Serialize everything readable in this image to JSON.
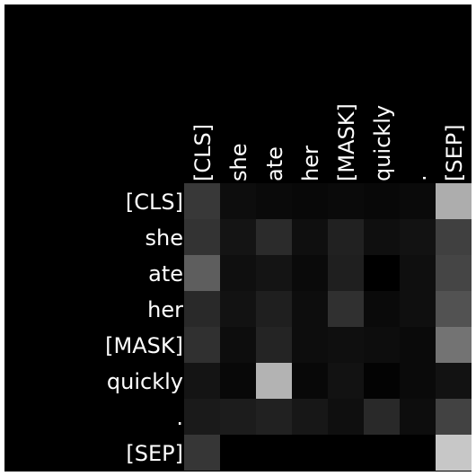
{
  "chart_data": {
    "type": "heatmap",
    "x_tokens": [
      "[CLS]",
      "she",
      "ate",
      "her",
      "[MASK]",
      "quickly",
      ".",
      "[SEP]"
    ],
    "y_tokens": [
      "[CLS]",
      "she",
      "ate",
      "her",
      "[MASK]",
      "quickly",
      ".",
      "[SEP]"
    ],
    "colormap": "grayscale",
    "background": "#000000",
    "label_color": "#ffffff",
    "values": [
      [
        0.22,
        0.05,
        0.04,
        0.03,
        0.04,
        0.03,
        0.04,
        0.68
      ],
      [
        0.2,
        0.08,
        0.17,
        0.06,
        0.13,
        0.06,
        0.07,
        0.25
      ],
      [
        0.37,
        0.06,
        0.08,
        0.04,
        0.12,
        0.0,
        0.06,
        0.27
      ],
      [
        0.16,
        0.07,
        0.12,
        0.05,
        0.19,
        0.04,
        0.06,
        0.32
      ],
      [
        0.19,
        0.05,
        0.14,
        0.05,
        0.06,
        0.05,
        0.04,
        0.45
      ],
      [
        0.08,
        0.03,
        0.7,
        0.03,
        0.07,
        0.01,
        0.04,
        0.07
      ],
      [
        0.1,
        0.11,
        0.13,
        0.09,
        0.06,
        0.16,
        0.05,
        0.26
      ],
      [
        0.21,
        0.0,
        0.0,
        0.0,
        0.0,
        0.0,
        0.0,
        0.78
      ]
    ]
  }
}
